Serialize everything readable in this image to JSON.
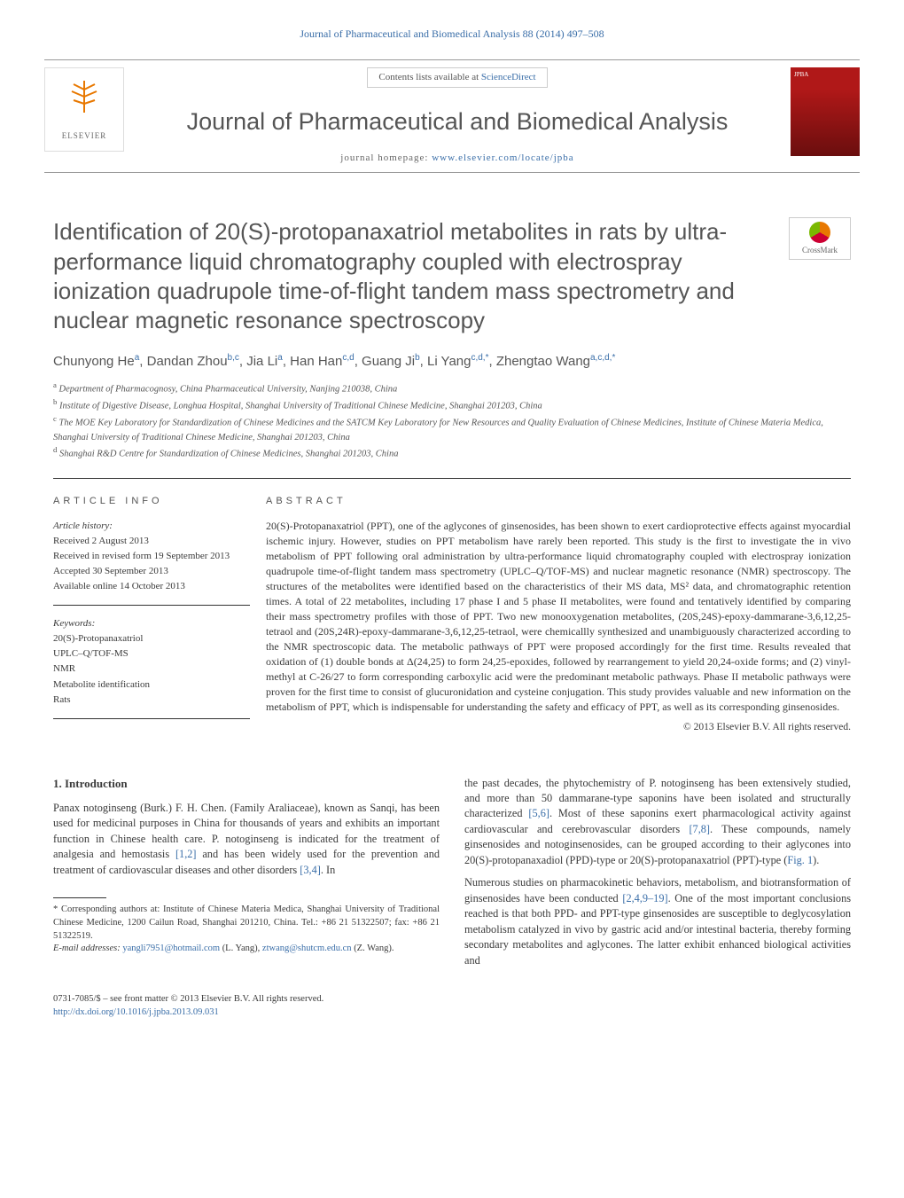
{
  "header": {
    "citation_line": "Journal of Pharmaceutical and Biomedical Analysis 88 (2014) 497–508",
    "contents_pre": "Contents lists available at ",
    "contents_link": "ScienceDirect",
    "journal_title": "Journal of Pharmaceutical and Biomedical Analysis",
    "homepage_pre": "journal homepage: ",
    "homepage_link": "www.elsevier.com/locate/jpba",
    "elsevier_label": "ELSEVIER",
    "crossmark_label": "CrossMark"
  },
  "article": {
    "title": "Identification of 20(S)-protopanaxatriol metabolites in rats by ultra-performance liquid chromatography coupled with electrospray ionization quadrupole time-of-flight tandem mass spectrometry and nuclear magnetic resonance spectroscopy",
    "authors_html": "Chunyong He<sup>a</sup>, Dandan Zhou<sup>b,c</sup>, Jia Li<sup>a</sup>, Han Han<sup>c,d</sup>, Guang Ji<sup>b</sup>, Li Yang<sup>c,d,*</sup>, Zhengtao Wang<sup>a,c,d,*</sup>",
    "affiliations": {
      "a": "Department of Pharmacognosy, China Pharmaceutical University, Nanjing 210038, China",
      "b": "Institute of Digestive Disease, Longhua Hospital, Shanghai University of Traditional Chinese Medicine, Shanghai 201203, China",
      "c": "The MOE Key Laboratory for Standardization of Chinese Medicines and the SATCM Key Laboratory for New Resources and Quality Evaluation of Chinese Medicines, Institute of Chinese Materia Medica, Shanghai University of Traditional Chinese Medicine, Shanghai 201203, China",
      "d": "Shanghai R&D Centre for Standardization of Chinese Medicines, Shanghai 201203, China"
    }
  },
  "meta": {
    "info_heading": "article info",
    "history_label": "Article history:",
    "received": "Received 2 August 2013",
    "revised": "Received in revised form 19 September 2013",
    "accepted": "Accepted 30 September 2013",
    "online": "Available online 14 October 2013",
    "keywords_label": "Keywords:",
    "keywords": [
      "20(S)-Protopanaxatriol",
      "UPLC–Q/TOF-MS",
      "NMR",
      "Metabolite identification",
      "Rats"
    ]
  },
  "abstract": {
    "heading": "abstract",
    "text": "20(S)-Protopanaxatriol (PPT), one of the aglycones of ginsenosides, has been shown to exert cardioprotective effects against myocardial ischemic injury. However, studies on PPT metabolism have rarely been reported. This study is the first to investigate the in vivo metabolism of PPT following oral administration by ultra-performance liquid chromatography coupled with electrospray ionization quadrupole time-of-flight tandem mass spectrometry (UPLC–Q/TOF-MS) and nuclear magnetic resonance (NMR) spectroscopy. The structures of the metabolites were identified based on the characteristics of their MS data, MS² data, and chromatographic retention times. A total of 22 metabolites, including 17 phase I and 5 phase II metabolites, were found and tentatively identified by comparing their mass spectrometry profiles with those of PPT. Two new monooxygenation metabolites, (20S,24S)-epoxy-dammarane-3,6,12,25-tetraol and (20S,24R)-epoxy-dammarane-3,6,12,25-tetraol, were chemicallly synthesized and unambiguously characterized according to the NMR spectroscopic data. The metabolic pathways of PPT were proposed accordingly for the first time. Results revealed that oxidation of (1) double bonds at Δ(24,25) to form 24,25-epoxides, followed by rearrangement to yield 20,24-oxide forms; and (2) vinyl-methyl at C-26/27 to form corresponding carboxylic acid were the predominant metabolic pathways. Phase II metabolic pathways were proven for the first time to consist of glucuronidation and cysteine conjugation. This study provides valuable and new information on the metabolism of PPT, which is indispensable for understanding the safety and efficacy of PPT, as well as its corresponding ginsenosides.",
    "copyright": "© 2013 Elsevier B.V. All rights reserved."
  },
  "body": {
    "intro_heading": "1. Introduction",
    "p1_pre": "Panax notoginseng (Burk.) F. H. Chen. (Family Araliaceae), known as Sanqi, has been used for medicinal purposes in China for thousands of years and exhibits an important function in Chinese health care. P. notoginseng is indicated for the treatment of analgesia and hemostasis ",
    "p1_ref1": "[1,2]",
    "p1_mid": " and has been widely used for the prevention and treatment of cardiovascular diseases and other disorders ",
    "p1_ref2": "[3,4]",
    "p1_post": ". In",
    "p2_pre": "the past decades, the phytochemistry of P. notoginseng has been extensively studied, and more than 50 dammarane-type saponins have been isolated and structurally characterized ",
    "p2_ref1": "[5,6]",
    "p2_mid": ". Most of these saponins exert pharmacological activity against cardiovascular and cerebrovascular disorders ",
    "p2_ref2": "[7,8]",
    "p2_mid2": ". These compounds, namely ginsenosides and notoginsenosides, can be grouped according to their aglycones into 20(S)-protopanaxadiol (PPD)-type or 20(S)-protopanaxatriol (PPT)-type (",
    "p2_ref3": "Fig. 1",
    "p2_post": ").",
    "p3_pre": "Numerous studies on pharmacokinetic behaviors, metabolism, and biotransformation of ginsenosides have been conducted ",
    "p3_ref1": "[2,4,9–19]",
    "p3_post": ". One of the most important conclusions reached is that both PPD- and PPT-type ginsenosides are susceptible to deglycosylation metabolism catalyzed in vivo by gastric acid and/or intestinal bacteria, thereby forming secondary metabolites and aglycones. The latter exhibit enhanced biological activities and"
  },
  "footnotes": {
    "corr_label": "* Corresponding authors at: Institute of Chinese Materia Medica, Shanghai University of Traditional Chinese Medicine, 1200 Cailun Road, Shanghai 201210, China. Tel.: +86 21 51322507; fax: +86 21 51322519.",
    "email_label": "E-mail addresses: ",
    "email1": "yangli7951@hotmail.com",
    "email1_who": " (L. Yang), ",
    "email2": "ztwang@shutcm.edu.cn",
    "email2_who": " (Z. Wang).",
    "bottom_line": "0731-7085/$ – see front matter © 2013 Elsevier B.V. All rights reserved.",
    "doi": "http://dx.doi.org/10.1016/j.jpba.2013.09.031"
  },
  "style": {
    "link_color": "#3a6ea8",
    "rule_color": "#333333",
    "body_text_color": "#3a3a3a",
    "elsevier_orange": "#e87800",
    "cover_red_top": "#b01818",
    "cover_red_bottom": "#6a0e0e"
  }
}
